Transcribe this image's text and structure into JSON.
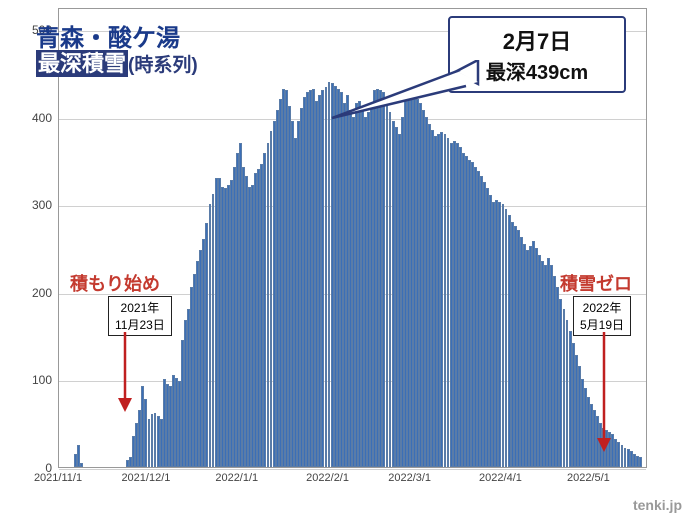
{
  "title": {
    "location": "青森・酸ケ湯",
    "fontsize": 24
  },
  "subtitle": {
    "highlight": "最深積雪",
    "extra": "(時系列)",
    "fontsize": 22
  },
  "callout": {
    "date": "2月7日",
    "value": "最深439cm",
    "fontsize_date": 22,
    "fontsize_val": 20
  },
  "annotations": {
    "start": {
      "label": "積もり始め",
      "date_l1": "2021年",
      "date_l2": "11月23日",
      "color": "#c43a2f"
    },
    "end": {
      "label": "積雪ゼロ",
      "date_l1": "2022年",
      "date_l2": "5月19日",
      "color": "#c43a2f"
    }
  },
  "watermark": "tenki.jp",
  "chart": {
    "type": "bar",
    "ylim": [
      0,
      525
    ],
    "yticks": [
      0,
      100,
      200,
      300,
      400,
      500
    ],
    "xtick_labels": [
      "2021/11/1",
      "2021/12/1",
      "2022/1/1",
      "2022/2/1",
      "2022/3/1",
      "2022/4/1",
      "2022/5/1"
    ],
    "xtick_days": [
      0,
      30,
      61,
      92,
      120,
      151,
      181
    ],
    "total_days": 201,
    "bar_color": "#3b6fb7",
    "bar_border": "#5a7ca8",
    "background": "#ffffff",
    "grid_color": "#d0d0d0",
    "annotation_color": "#c43a2f",
    "callout_border": "#2b3b7a",
    "title_color": "#1a3a8a",
    "values": [
      0,
      0,
      0,
      0,
      0,
      15,
      25,
      5,
      0,
      0,
      0,
      0,
      0,
      0,
      0,
      0,
      0,
      0,
      0,
      0,
      0,
      0,
      8,
      12,
      35,
      50,
      65,
      92,
      78,
      55,
      60,
      62,
      58,
      55,
      100,
      95,
      92,
      105,
      102,
      98,
      145,
      168,
      180,
      205,
      220,
      235,
      248,
      260,
      278,
      300,
      312,
      330,
      330,
      320,
      318,
      322,
      328,
      342,
      358,
      370,
      342,
      332,
      320,
      322,
      335,
      340,
      346,
      358,
      370,
      383,
      395,
      408,
      420,
      432,
      430,
      412,
      395,
      376,
      395,
      410,
      422,
      428,
      430,
      432,
      418,
      425,
      430,
      434,
      439,
      438,
      435,
      432,
      428,
      415,
      425,
      408,
      400,
      415,
      418,
      412,
      400,
      405,
      415,
      430,
      432,
      430,
      428,
      415,
      405,
      395,
      388,
      380,
      400,
      428,
      432,
      430,
      425,
      420,
      415,
      408,
      400,
      392,
      385,
      378,
      380,
      382,
      380,
      375,
      370,
      372,
      370,
      365,
      358,
      355,
      350,
      348,
      342,
      338,
      332,
      325,
      318,
      310,
      302,
      305,
      302,
      300,
      295,
      288,
      280,
      275,
      270,
      262,
      255,
      248,
      252,
      258,
      250,
      242,
      235,
      230,
      238,
      230,
      218,
      205,
      192,
      180,
      168,
      155,
      142,
      128,
      115,
      101,
      90,
      80,
      72,
      65,
      58,
      50,
      45,
      42,
      40,
      38,
      32,
      28,
      25,
      22,
      20,
      18,
      15,
      13,
      11,
      0,
      0
    ]
  }
}
